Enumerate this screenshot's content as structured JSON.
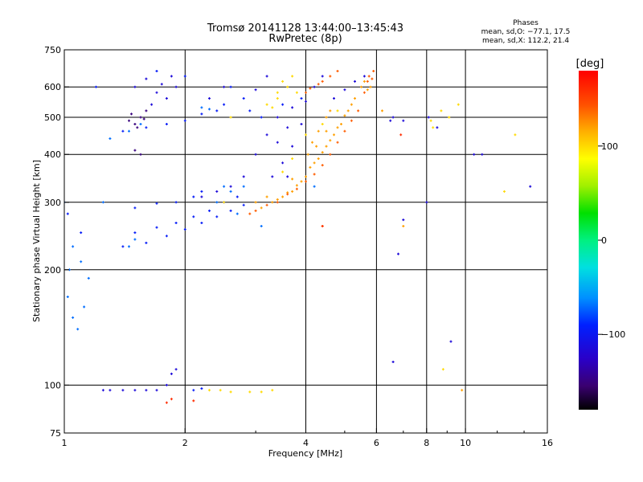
{
  "chart_data": {
    "type": "scatter",
    "title": "Tromsø 20141128 13:44:00–13:45:43",
    "subtitle": "RwPretec (8p)",
    "stats": {
      "heading": "Phases",
      "line1": "mean, sd,O: −77.1, 17.5",
      "line2": "mean, sd,X: 112.2, 21.4"
    },
    "xlabel": "Frequency [MHz]",
    "ylabel": "Stationary phase Virtual Height [km]",
    "x_scale": "log",
    "y_scale": "log",
    "xlim": [
      1,
      16
    ],
    "ylim": [
      75,
      750
    ],
    "x_ticks": [
      1,
      2,
      4,
      6,
      8,
      10,
      16
    ],
    "x_tick_labels": [
      "1",
      "2",
      "4",
      "6",
      "8",
      "10",
      "16"
    ],
    "x_grid": [
      2,
      4,
      6,
      8,
      10
    ],
    "y_ticks": [
      75,
      100,
      200,
      300,
      400,
      500,
      600,
      750
    ],
    "y_tick_labels": [
      "75",
      "100",
      "200",
      "300",
      "400",
      "500",
      "600",
      "750"
    ],
    "y_grid": [
      100,
      200,
      300,
      400,
      500,
      600
    ],
    "grid": true,
    "colorbar": {
      "label": "[deg]",
      "range": [
        -180,
        180
      ],
      "ticks": [
        100,
        0,
        -100
      ],
      "tick_labels": [
        "100",
        "0",
        "−100"
      ]
    },
    "series": [
      {
        "phase": -150,
        "points": [
          [
            1.45,
            490
          ],
          [
            1.5,
            480
          ],
          [
            1.55,
            500
          ],
          [
            1.6,
            520
          ],
          [
            1.47,
            510
          ],
          [
            1.52,
            470
          ],
          [
            1.58,
            495
          ],
          [
            1.5,
            410
          ],
          [
            1.55,
            400
          ]
        ]
      },
      {
        "phase": -115,
        "points": [
          [
            1.5,
            600
          ],
          [
            1.6,
            630
          ],
          [
            1.7,
            580
          ],
          [
            1.8,
            560
          ],
          [
            1.9,
            600
          ],
          [
            1.65,
            540
          ],
          [
            1.75,
            610
          ],
          [
            1.85,
            640
          ],
          [
            2.3,
            560
          ],
          [
            2.5,
            600
          ],
          [
            3.0,
            590
          ],
          [
            3.2,
            640
          ],
          [
            3.6,
            470
          ],
          [
            3.4,
            430
          ],
          [
            3.7,
            420
          ],
          [
            3.5,
            380
          ],
          [
            3.3,
            350
          ],
          [
            4.7,
            560
          ],
          [
            5.0,
            590
          ],
          [
            5.3,
            620
          ],
          [
            5.6,
            640
          ],
          [
            4.2,
            600
          ],
          [
            4.4,
            640
          ],
          [
            2.2,
            310
          ],
          [
            2.4,
            320
          ],
          [
            2.6,
            330
          ],
          [
            2.8,
            350
          ],
          [
            3.0,
            400
          ],
          [
            3.2,
            450
          ],
          [
            3.4,
            500
          ],
          [
            3.7,
            530
          ],
          [
            4.0,
            550
          ],
          [
            3.9,
            480
          ],
          [
            3.6,
            350
          ],
          [
            1.8,
            100
          ],
          [
            1.7,
            97
          ],
          [
            1.6,
            97
          ],
          [
            1.5,
            97
          ],
          [
            1.4,
            97
          ],
          [
            1.3,
            97
          ],
          [
            1.25,
            97
          ],
          [
            1.85,
            107
          ],
          [
            1.9,
            110
          ],
          [
            6.8,
            220
          ],
          [
            7.0,
            270
          ],
          [
            8.0,
            300
          ],
          [
            8.5,
            470
          ],
          [
            8.1,
            500
          ],
          [
            6.6,
            115
          ],
          [
            9.2,
            130
          ],
          [
            14.5,
            330
          ],
          [
            11,
            400
          ],
          [
            10.5,
            400
          ],
          [
            7.0,
            490
          ],
          [
            6.6,
            500
          ],
          [
            6.5,
            490
          ]
        ]
      },
      {
        "phase": -95,
        "points": [
          [
            1.4,
            460
          ],
          [
            1.6,
            470
          ],
          [
            1.8,
            480
          ],
          [
            2.0,
            490
          ],
          [
            2.2,
            510
          ],
          [
            2.4,
            520
          ],
          [
            2.5,
            540
          ],
          [
            1.4,
            230
          ],
          [
            1.6,
            235
          ],
          [
            1.8,
            245
          ],
          [
            2.0,
            255
          ],
          [
            2.2,
            265
          ],
          [
            2.4,
            275
          ],
          [
            2.6,
            285
          ],
          [
            2.8,
            295
          ],
          [
            1.5,
            250
          ],
          [
            1.7,
            258
          ],
          [
            1.9,
            265
          ],
          [
            2.1,
            275
          ],
          [
            2.3,
            285
          ],
          [
            2.5,
            300
          ],
          [
            2.7,
            310
          ],
          [
            1.5,
            290
          ],
          [
            1.7,
            298
          ],
          [
            1.9,
            300
          ],
          [
            2.1,
            310
          ],
          [
            2.2,
            320
          ],
          [
            1.1,
            250
          ],
          [
            1.02,
            280
          ],
          [
            1.2,
            600
          ],
          [
            1.7,
            660
          ],
          [
            2.0,
            640
          ],
          [
            2.6,
            600
          ],
          [
            2.8,
            560
          ],
          [
            3.1,
            500
          ],
          [
            2.9,
            520
          ],
          [
            3.5,
            540
          ],
          [
            3.9,
            560
          ],
          [
            2.1,
            97
          ],
          [
            2.2,
            98
          ]
        ]
      },
      {
        "phase": -70,
        "points": [
          [
            1.05,
            230
          ],
          [
            1.03,
            200
          ],
          [
            1.02,
            170
          ],
          [
            1.05,
            150
          ],
          [
            1.08,
            140
          ],
          [
            1.0,
            300
          ],
          [
            1.1,
            210
          ],
          [
            1.15,
            190
          ],
          [
            1.12,
            160
          ],
          [
            1.25,
            300
          ],
          [
            1.3,
            440
          ],
          [
            1.45,
            460
          ],
          [
            1.55,
            480
          ],
          [
            1.45,
            230
          ],
          [
            1.5,
            240
          ],
          [
            2.4,
            300
          ],
          [
            2.6,
            320
          ],
          [
            2.8,
            330
          ],
          [
            2.5,
            330
          ],
          [
            2.7,
            280
          ],
          [
            4.2,
            330
          ],
          [
            3.1,
            260
          ],
          [
            2.3,
            525
          ],
          [
            2.2,
            530
          ]
        ]
      },
      {
        "phase": 100,
        "points": [
          [
            3.3,
            530
          ],
          [
            3.4,
            560
          ],
          [
            3.6,
            600
          ],
          [
            3.7,
            640
          ],
          [
            3.5,
            620
          ],
          [
            3.8,
            580
          ],
          [
            3.4,
            580
          ],
          [
            3.2,
            540
          ],
          [
            2.3,
            97
          ],
          [
            2.45,
            97
          ],
          [
            2.6,
            96
          ],
          [
            2.9,
            96
          ],
          [
            3.1,
            96
          ],
          [
            3.3,
            97
          ],
          [
            2.5,
            300
          ],
          [
            3.5,
            360
          ],
          [
            3.7,
            390
          ],
          [
            4.0,
            450
          ],
          [
            4.4,
            480
          ],
          [
            4.8,
            520
          ],
          [
            8.2,
            490
          ],
          [
            8.3,
            470
          ],
          [
            8.7,
            520
          ],
          [
            9.1,
            500
          ],
          [
            9.6,
            540
          ],
          [
            12.5,
            320
          ],
          [
            13.3,
            450
          ],
          [
            8.8,
            110
          ],
          [
            2.6,
            500
          ]
        ]
      },
      {
        "phase": 120,
        "points": [
          [
            3.1,
            290
          ],
          [
            3.3,
            300
          ],
          [
            3.5,
            310
          ],
          [
            3.7,
            320
          ],
          [
            3.9,
            340
          ],
          [
            4.1,
            370
          ],
          [
            4.3,
            390
          ],
          [
            4.5,
            420
          ],
          [
            4.7,
            450
          ],
          [
            4.9,
            480
          ],
          [
            5.1,
            520
          ],
          [
            5.3,
            560
          ],
          [
            5.5,
            600
          ],
          [
            3.4,
            305
          ],
          [
            3.6,
            318
          ],
          [
            3.8,
            332
          ],
          [
            4.0,
            350
          ],
          [
            4.2,
            380
          ],
          [
            4.4,
            405
          ],
          [
            4.6,
            435
          ],
          [
            4.8,
            470
          ],
          [
            5.0,
            505
          ],
          [
            5.2,
            540
          ],
          [
            5.6,
            620
          ],
          [
            3.2,
            310
          ],
          [
            3.0,
            300
          ],
          [
            3.7,
            345
          ],
          [
            4.05,
            400
          ],
          [
            4.25,
            420
          ],
          [
            4.5,
            460
          ],
          [
            4.15,
            430
          ],
          [
            4.3,
            460
          ],
          [
            4.5,
            500
          ],
          [
            4.6,
            520
          ],
          [
            5.8,
            600
          ],
          [
            5.7,
            590
          ],
          [
            6.2,
            520
          ],
          [
            7.0,
            260
          ],
          [
            4.4,
            260
          ],
          [
            9.8,
            97
          ]
        ]
      },
      {
        "phase": 140,
        "points": [
          [
            2.9,
            280
          ],
          [
            3.0,
            285
          ],
          [
            3.2,
            295
          ],
          [
            3.4,
            300
          ],
          [
            3.6,
            315
          ],
          [
            3.8,
            325
          ],
          [
            4.0,
            340
          ],
          [
            4.2,
            355
          ],
          [
            4.4,
            375
          ],
          [
            4.6,
            400
          ],
          [
            4.8,
            430
          ],
          [
            5.0,
            460
          ],
          [
            5.2,
            490
          ],
          [
            5.4,
            520
          ],
          [
            5.6,
            580
          ],
          [
            5.7,
            620
          ],
          [
            5.75,
            640
          ],
          [
            4.4,
            620
          ],
          [
            4.6,
            640
          ],
          [
            4.8,
            660
          ],
          [
            4.0,
            580
          ],
          [
            4.1,
            595
          ],
          [
            4.3,
            610
          ],
          [
            5.9,
            660
          ],
          [
            5.85,
            630
          ]
        ]
      },
      {
        "phase": 160,
        "points": [
          [
            1.8,
            90
          ],
          [
            1.85,
            92
          ],
          [
            2.1,
            91
          ],
          [
            4.4,
            260
          ],
          [
            6.9,
            450
          ]
        ]
      }
    ]
  }
}
